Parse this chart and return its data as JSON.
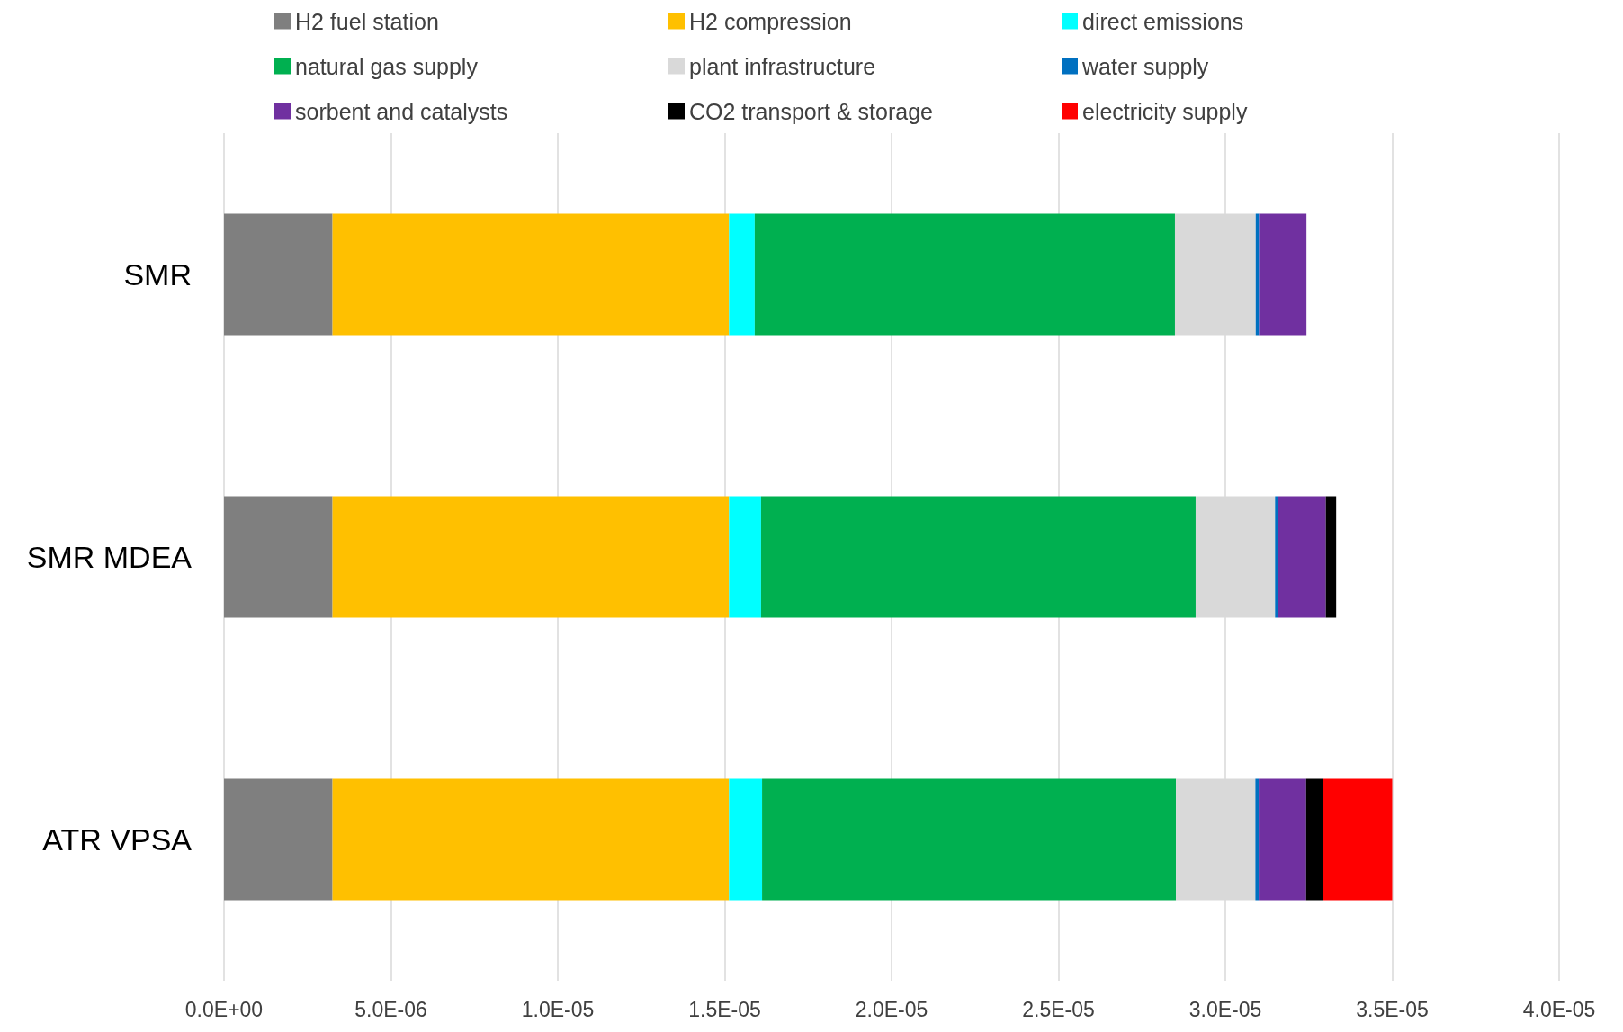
{
  "chart_data": {
    "type": "bar",
    "orientation": "horizontal",
    "stacked": true,
    "categories": [
      "SMR",
      "SMR MDEA",
      "ATR VPSA"
    ],
    "series": [
      {
        "name": "H2 fuel station",
        "color": "#7f7f7f",
        "values": [
          3.25e-06,
          3.25e-06,
          3.25e-06
        ]
      },
      {
        "name": "H2 compression",
        "color": "#ffc000",
        "values": [
          1.188e-05,
          1.188e-05,
          1.188e-05
        ]
      },
      {
        "name": "direct emissions",
        "color": "#00ffff",
        "values": [
          7.7e-07,
          9.6e-07,
          9.9e-07
        ]
      },
      {
        "name": "natural gas supply",
        "color": "#00b050",
        "values": [
          1.259e-05,
          1.302e-05,
          1.24e-05
        ]
      },
      {
        "name": "plant infrastructure",
        "color": "#d9d9d9",
        "values": [
          2.42e-06,
          2.38e-06,
          2.38e-06
        ]
      },
      {
        "name": "water supply",
        "color": "#0070c0",
        "values": [
          1e-07,
          1e-07,
          1e-07
        ]
      },
      {
        "name": "sorbent and catalysts",
        "color": "#7030a0",
        "values": [
          1.42e-06,
          1.42e-06,
          1.42e-06
        ]
      },
      {
        "name": "CO2 transport & storage",
        "color": "#000000",
        "values": [
          null,
          3.1e-07,
          5e-07
        ]
      },
      {
        "name": "electricity supply",
        "color": "#ff0000",
        "values": [
          null,
          null,
          2.08e-06
        ]
      }
    ],
    "xlim": [
      0,
      4e-05
    ],
    "xticks": [
      {
        "value": 0,
        "label": "0.0E+00"
      },
      {
        "value": 5e-06,
        "label": "5.0E-06"
      },
      {
        "value": 1e-05,
        "label": "1.0E-05"
      },
      {
        "value": 1.5e-05,
        "label": "1.5E-05"
      },
      {
        "value": 2e-05,
        "label": "2.0E-05"
      },
      {
        "value": 2.5e-05,
        "label": "2.5E-05"
      },
      {
        "value": 3e-05,
        "label": "3.0E-05"
      },
      {
        "value": 3.5e-05,
        "label": "3.5E-05"
      },
      {
        "value": 4e-05,
        "label": "4.0E-05"
      }
    ],
    "grid": "x",
    "legend": "top"
  }
}
